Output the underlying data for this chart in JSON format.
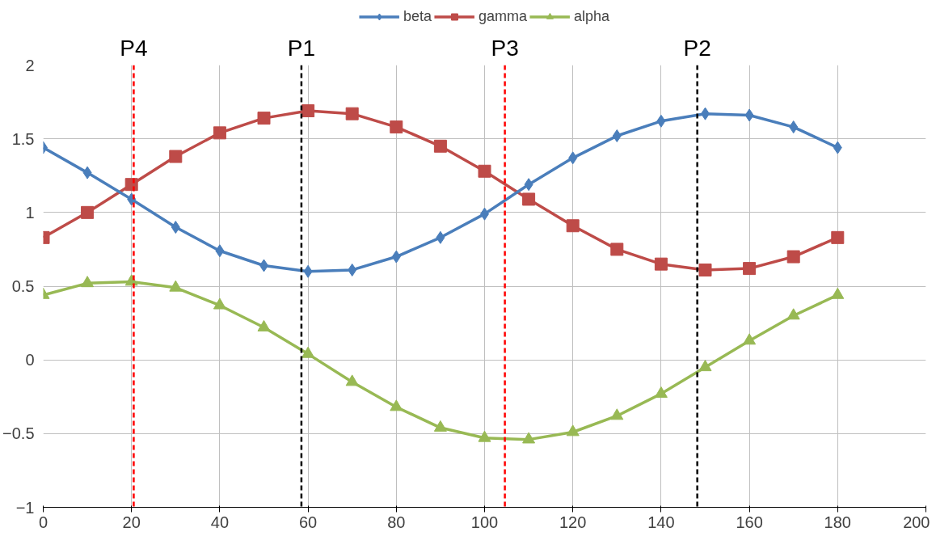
{
  "chart_data": {
    "type": "line",
    "x": [
      0,
      10,
      20,
      30,
      40,
      50,
      60,
      70,
      80,
      90,
      100,
      110,
      120,
      130,
      140,
      150,
      160,
      170,
      180
    ],
    "series": [
      {
        "name": "beta",
        "color": "#4a7ebb",
        "marker": "diamond",
        "values": [
          1.44,
          1.27,
          1.09,
          0.9,
          0.74,
          0.64,
          0.6,
          0.61,
          0.7,
          0.83,
          0.99,
          1.19,
          1.37,
          1.52,
          1.62,
          1.67,
          1.66,
          1.58,
          1.44
        ]
      },
      {
        "name": "gamma",
        "color": "#be4b48",
        "marker": "square",
        "values": [
          0.83,
          1.0,
          1.19,
          1.38,
          1.54,
          1.64,
          1.69,
          1.67,
          1.58,
          1.45,
          1.28,
          1.09,
          0.91,
          0.75,
          0.65,
          0.61,
          0.62,
          0.7,
          0.83
        ]
      },
      {
        "name": "alpha",
        "color": "#98b954",
        "marker": "triangle",
        "values": [
          0.44,
          0.52,
          0.53,
          0.49,
          0.37,
          0.22,
          0.04,
          -0.15,
          -0.32,
          -0.46,
          -0.53,
          -0.54,
          -0.49,
          -0.38,
          -0.23,
          -0.05,
          0.13,
          0.3,
          0.44
        ]
      }
    ],
    "xlim": [
      0,
      200
    ],
    "xticks": [
      0,
      20,
      40,
      60,
      80,
      100,
      120,
      140,
      160,
      180,
      200
    ],
    "ylim": [
      -1,
      2
    ],
    "yticks": [
      -1,
      -0.5,
      0,
      0.5,
      1,
      1.5,
      2
    ],
    "ref_lines": [
      {
        "axis": "x",
        "value": 20.5,
        "label": "P4",
        "color": "#ff0000",
        "line_style": "dashed"
      },
      {
        "axis": "x",
        "value": 58.5,
        "label": "P1",
        "color": "#000000",
        "line_style": "dashed"
      },
      {
        "axis": "x",
        "value": 104.6,
        "label": "P3",
        "color": "#ff0000",
        "line_style": "dashed"
      },
      {
        "axis": "x",
        "value": 148.2,
        "label": "P2",
        "color": "#000000",
        "line_style": "dashed"
      }
    ],
    "grid": true,
    "legend": "top",
    "line_style": "solid"
  }
}
